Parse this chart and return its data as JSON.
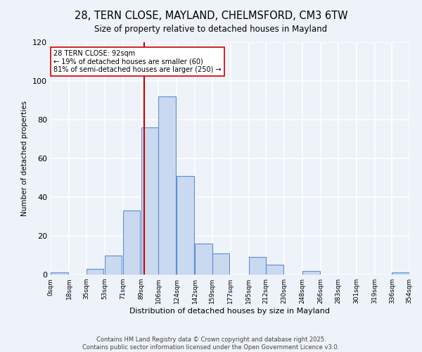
{
  "title": "28, TERN CLOSE, MAYLAND, CHELMSFORD, CM3 6TW",
  "subtitle": "Size of property relative to detached houses in Mayland",
  "xlabel": "Distribution of detached houses by size in Mayland",
  "ylabel": "Number of detached properties",
  "bar_left_edges": [
    0,
    18,
    35,
    53,
    71,
    89,
    106,
    124,
    142,
    159,
    177,
    195,
    212,
    230,
    248,
    266,
    283,
    301,
    319,
    336
  ],
  "bar_heights": [
    1,
    0,
    3,
    10,
    33,
    76,
    92,
    51,
    16,
    11,
    0,
    9,
    5,
    0,
    2,
    0,
    0,
    0,
    0,
    1
  ],
  "bin_width": 17,
  "bar_color": "#c9d9f0",
  "bar_edge_color": "#5b8ed6",
  "tick_labels": [
    "0sqm",
    "18sqm",
    "35sqm",
    "53sqm",
    "71sqm",
    "89sqm",
    "106sqm",
    "124sqm",
    "142sqm",
    "159sqm",
    "177sqm",
    "195sqm",
    "212sqm",
    "230sqm",
    "248sqm",
    "266sqm",
    "283sqm",
    "301sqm",
    "319sqm",
    "336sqm",
    "354sqm"
  ],
  "vline_x": 92,
  "vline_color": "#cc0000",
  "annotation_title": "28 TERN CLOSE: 92sqm",
  "annotation_line1": "← 19% of detached houses are smaller (60)",
  "annotation_line2": "81% of semi-detached houses are larger (250) →",
  "annotation_box_color": "#ffffff",
  "annotation_box_edge": "#cc0000",
  "ylim": [
    0,
    120
  ],
  "yticks": [
    0,
    20,
    40,
    60,
    80,
    100,
    120
  ],
  "footnote1": "Contains HM Land Registry data © Crown copyright and database right 2025.",
  "footnote2": "Contains public sector information licensed under the Open Government Licence v3.0.",
  "bg_color": "#eef2f9",
  "grid_color": "#ffffff"
}
